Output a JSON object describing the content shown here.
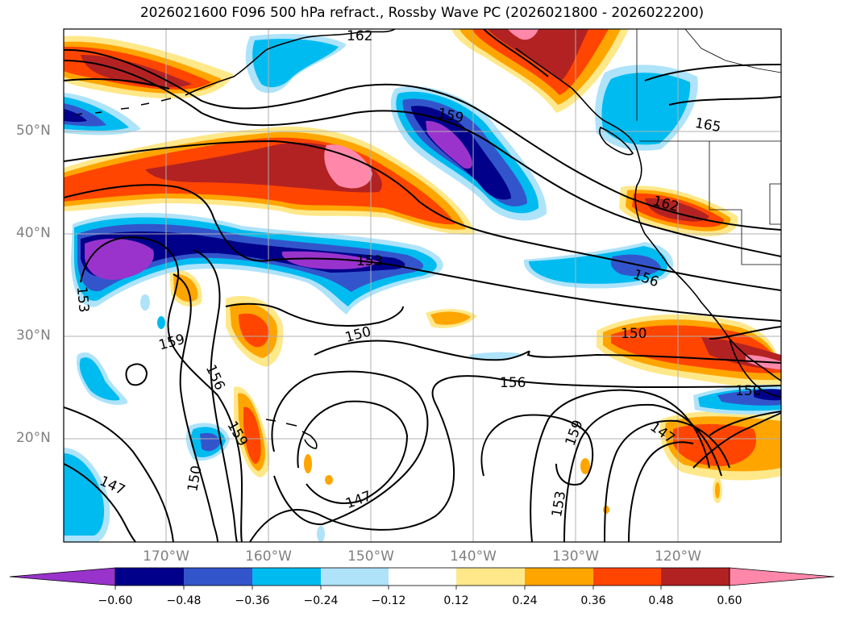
{
  "title": "2026021600 F096 500 hPa refract., Rossby Wave PC (2026021800 - 2026022200)",
  "lat_labels": [
    "50°N",
    "40°N",
    "30°N",
    "20°N"
  ],
  "lon_labels": [
    "170°W",
    "160°W",
    "150°W",
    "140°W",
    "130°W",
    "120°W"
  ],
  "contour_labels": [
    "162",
    "159",
    "165",
    "162",
    "153",
    "156",
    "150",
    "150",
    "159",
    "156",
    "159",
    "156",
    "150",
    "147",
    "147",
    "153",
    "159",
    "150",
    "147",
    "153"
  ],
  "colorbar": {
    "ticks": [
      "−0.60",
      "−0.48",
      "−0.36",
      "−0.24",
      "−0.12",
      "0.12",
      "0.24",
      "0.36",
      "0.48",
      "0.60"
    ],
    "colors": [
      "#9933cc",
      "#00008b",
      "#3355cc",
      "#00bbf0",
      "#aee3fa",
      "#ffffff",
      "#ffe88a",
      "#ffa500",
      "#ff4500",
      "#b22222",
      "#ff88aa"
    ]
  },
  "colors": {
    "land": "#000000",
    "grid": "#b0b0b0",
    "contour": "#000000"
  }
}
